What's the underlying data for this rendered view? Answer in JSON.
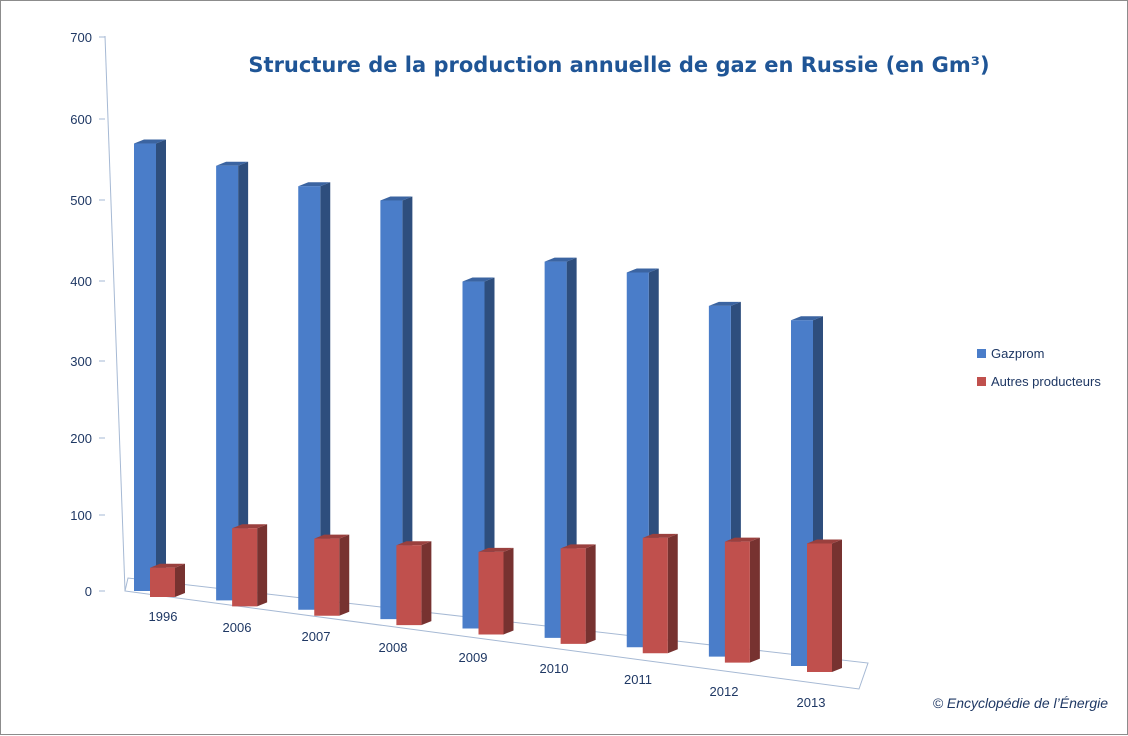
{
  "chart_data": {
    "type": "bar",
    "title": "Structure de la production annuelle de gaz en Russie (en Gm³)",
    "xlabel": "",
    "ylabel": "",
    "categories": [
      "1996",
      "2006",
      "2007",
      "2008",
      "2009",
      "2010",
      "2011",
      "2012",
      "2013"
    ],
    "series": [
      {
        "name": "Gazprom",
        "values": [
          565,
          556,
          549,
          550,
          462,
          508,
          513,
          487,
          487
        ],
        "color": "#4a7dc9"
      },
      {
        "name": "Autres producteurs",
        "values": [
          37,
          100,
          100,
          105,
          110,
          129,
          158,
          168,
          181
        ],
        "color": "#c0504d"
      }
    ],
    "ylim": [
      0,
      700
    ],
    "yticks": [
      "0",
      "100",
      "200",
      "300",
      "400",
      "500",
      "600",
      "700"
    ],
    "legend_position": "right",
    "grid": false,
    "three_d": true,
    "credit": "© Encyclopédie de l’Énergie"
  }
}
